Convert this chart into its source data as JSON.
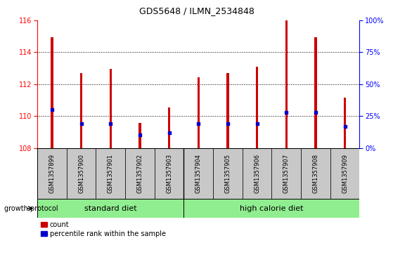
{
  "title": "GDS5648 / ILMN_2534848",
  "samples": [
    "GSM1357899",
    "GSM1357900",
    "GSM1357901",
    "GSM1357902",
    "GSM1357903",
    "GSM1357904",
    "GSM1357905",
    "GSM1357906",
    "GSM1357907",
    "GSM1357908",
    "GSM1357909"
  ],
  "count_values": [
    114.95,
    112.7,
    112.95,
    109.55,
    110.55,
    112.45,
    112.7,
    113.1,
    116.0,
    114.95,
    111.15
  ],
  "percentile_values": [
    30,
    19,
    19,
    10,
    12,
    19,
    19,
    19,
    28,
    28,
    17
  ],
  "ylim_left": [
    108,
    116
  ],
  "ylim_right": [
    0,
    100
  ],
  "yticks_left": [
    108,
    110,
    112,
    114,
    116
  ],
  "yticks_right": [
    0,
    25,
    50,
    75,
    100
  ],
  "ytick_labels_right": [
    "0%",
    "25%",
    "50%",
    "75%",
    "100%"
  ],
  "group_boundary": 4.5,
  "group_labels": [
    "standard diet",
    "high calorie diet"
  ],
  "group_label": "growth protocol",
  "bar_color": "#CC0000",
  "percentile_color": "#0000CC",
  "bar_width": 0.08,
  "grid_color": "#000000",
  "tick_label_bg": "#C8C8C8",
  "green_color": "#90EE90",
  "legend_items": [
    "count",
    "percentile rank within the sample"
  ],
  "legend_colors": [
    "#CC0000",
    "#0000CC"
  ]
}
